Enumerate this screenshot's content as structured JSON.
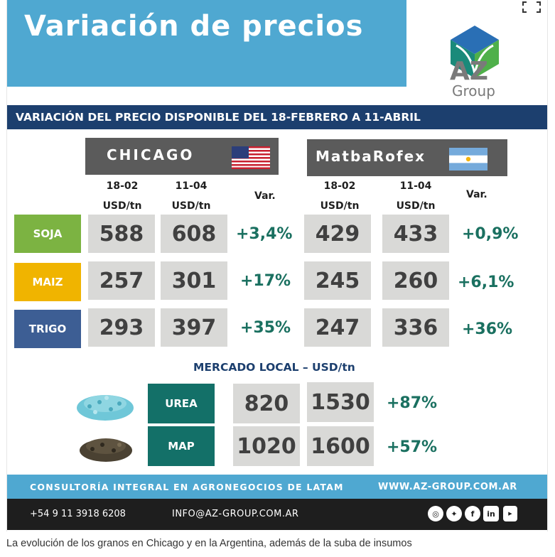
{
  "title": "Variación de precios",
  "logo": {
    "brand": "AZ",
    "sub": "Group"
  },
  "subtitle": "VARIACIÓN DEL PRECIO DISPONIBLE DEL 18-FEBRERO A 11-ABRIL",
  "markets": [
    {
      "name": "CHICAGO",
      "col1_date": "18-02",
      "col1_unit": "USD/tn",
      "col2_date": "11-04",
      "col2_unit": "USD/tn",
      "var_label": "Var."
    },
    {
      "name": "MatbaRofex",
      "col1_date": "18-02",
      "col1_unit": "USD/tn",
      "col2_date": "11-04",
      "col2_unit": "USD/tn",
      "var_label": "Var."
    }
  ],
  "grains": [
    {
      "name": "SOJA",
      "color": "#7cb342",
      "chicago": [
        "588",
        "608",
        "+3,4%"
      ],
      "matba": [
        "429",
        "433",
        "+0,9%"
      ]
    },
    {
      "name": "MAIZ",
      "color": "#f0b400",
      "chicago": [
        "257",
        "301",
        "+17%"
      ],
      "matba": [
        "245",
        "260",
        "+6,1%"
      ]
    },
    {
      "name": "TRIGO",
      "color": "#3d5e94",
      "chicago": [
        "293",
        "397",
        "+35%"
      ],
      "matba": [
        "247",
        "336",
        "+36%"
      ]
    }
  ],
  "local": {
    "title": "MERCADO LOCAL – USD/tn",
    "items": [
      {
        "name": "UREA",
        "v1": "820",
        "v2": "1530",
        "var": "+87%"
      },
      {
        "name": "MAP",
        "v1": "1020",
        "v2": "1600",
        "var": "+57%"
      }
    ]
  },
  "footer": {
    "tagline": "CONSULTORÍA INTEGRAL EN AGRONEGOCIOS DE LATAM",
    "website": "WWW.AZ-GROUP.COM.AR",
    "phone": "+54 9 11 3918 6208",
    "email": "INFO@AZ-GROUP.COM.AR",
    "social_icons": [
      "instagram-icon",
      "twitter-icon",
      "facebook-icon",
      "linkedin-icon",
      "youtube-icon"
    ]
  },
  "caption": "La evolución de los granos en Chicago y en la Argentina, además de la suba de insumos",
  "colors": {
    "title_bg": "#4fa8d1",
    "navy": "#1c3f6e",
    "header_gray": "#5b5b5b",
    "cell_gray": "#d9d9d7",
    "green_text": "#1a7060",
    "teal": "#137068"
  }
}
